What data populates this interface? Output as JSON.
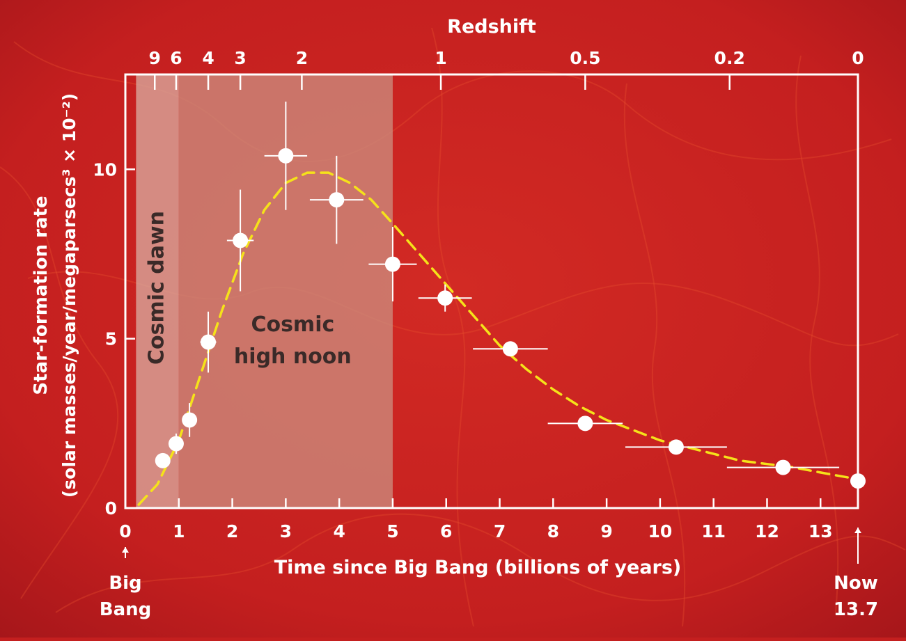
{
  "chart_data": {
    "type": "scatter",
    "title": "",
    "xlabel": "Time since Big Bang (billions of years)",
    "ylabel": "Star-formation rate",
    "ylabel_units": "(solar masses/year/megaparsecs³ × 10⁻²)",
    "top_axis_label": "Redshift",
    "xlim": [
      0,
      13.7
    ],
    "ylim": [
      0,
      12.8
    ],
    "x_ticks": [
      0,
      1,
      2,
      3,
      4,
      5,
      6,
      7,
      8,
      9,
      10,
      11,
      12,
      13
    ],
    "y_ticks": [
      0,
      5,
      10
    ],
    "redshift_ticks": [
      {
        "label": "9",
        "time": 0.55
      },
      {
        "label": "6",
        "time": 0.95
      },
      {
        "label": "4",
        "time": 1.55
      },
      {
        "label": "3",
        "time": 2.15
      },
      {
        "label": "2",
        "time": 3.3
      },
      {
        "label": "1",
        "time": 5.9
      },
      {
        "label": "0.5",
        "time": 8.6
      },
      {
        "label": "0.2",
        "time": 11.3
      },
      {
        "label": "0",
        "time": 13.7
      }
    ],
    "regions": [
      {
        "label": "Cosmic dawn",
        "x": [
          0.2,
          1.0
        ],
        "color": "#d9a99d"
      },
      {
        "label": "Cosmic high noon",
        "x": [
          1.0,
          5.0
        ],
        "color": "#cc8c7e"
      }
    ],
    "points": [
      {
        "x": 0.7,
        "y": 1.4,
        "xerr": 0,
        "yerr": 0
      },
      {
        "x": 0.95,
        "y": 1.9,
        "xerr": 0,
        "yerr": 0.3
      },
      {
        "x": 1.2,
        "y": 2.6,
        "xerr": 0,
        "yerr": 0.5
      },
      {
        "x": 1.55,
        "y": 4.9,
        "xerr": 0.15,
        "yerr": 0.9
      },
      {
        "x": 2.15,
        "y": 7.9,
        "xerr": 0.25,
        "yerr": 1.5
      },
      {
        "x": 3.0,
        "y": 10.4,
        "xerr": 0.4,
        "yerr": 1.6
      },
      {
        "x": 3.95,
        "y": 9.1,
        "xerr": 0.5,
        "yerr": 1.3
      },
      {
        "x": 5.0,
        "y": 7.2,
        "xerr": 0.45,
        "yerr": 1.1
      },
      {
        "x": 5.98,
        "y": 6.2,
        "xerr": 0.5,
        "yerr": 0.4
      },
      {
        "x": 7.2,
        "y": 4.7,
        "xerr": 0.7,
        "yerr": 0.2
      },
      {
        "x": 8.6,
        "y": 2.5,
        "xerr": 0.7,
        "yerr": 0.2
      },
      {
        "x": 10.3,
        "y": 1.8,
        "xerr": 0.95,
        "yerr": 0
      },
      {
        "x": 12.3,
        "y": 1.2,
        "xerr": 1.05,
        "yerr": 0
      },
      {
        "x": 13.7,
        "y": 0.8,
        "xerr": 0,
        "yerr": 0
      }
    ],
    "fit_curve": {
      "x": [
        0.25,
        0.6,
        1.0,
        1.4,
        1.8,
        2.2,
        2.6,
        3.0,
        3.4,
        3.8,
        4.2,
        4.6,
        5.0,
        5.5,
        6.0,
        6.5,
        7.0,
        7.5,
        8.0,
        8.5,
        9.0,
        9.5,
        10.0,
        10.5,
        11.0,
        11.5,
        12.0,
        12.5,
        13.0,
        13.7
      ],
      "y": [
        0.1,
        0.7,
        2.0,
        3.9,
        5.8,
        7.5,
        8.8,
        9.6,
        9.9,
        9.9,
        9.6,
        9.1,
        8.4,
        7.5,
        6.6,
        5.7,
        4.8,
        4.1,
        3.5,
        3.0,
        2.6,
        2.3,
        2.0,
        1.8,
        1.6,
        1.4,
        1.3,
        1.2,
        1.05,
        0.85
      ],
      "color": "#f5e21a",
      "style": "dashed"
    },
    "annotations": {
      "big_bang": [
        "Big",
        "Bang"
      ],
      "now": [
        "Now",
        "13.7"
      ]
    },
    "grid": false,
    "colors": {
      "background": "#c41f1f",
      "axes": "#ffffff",
      "points": "#ffffff",
      "region_text": "#3a2a28"
    }
  }
}
